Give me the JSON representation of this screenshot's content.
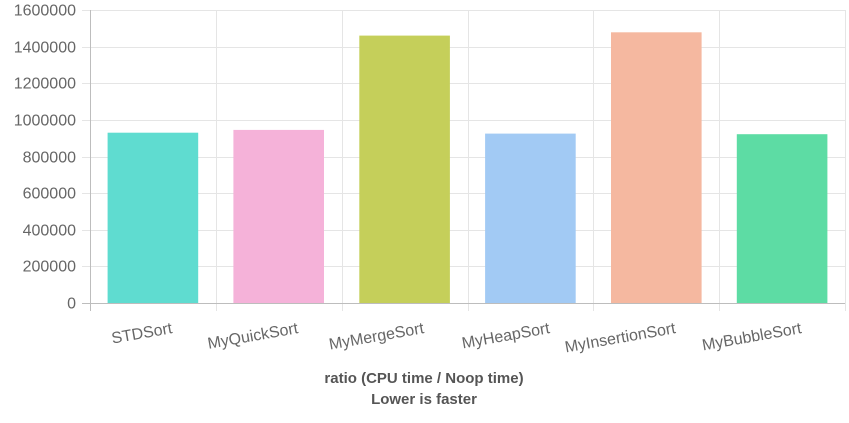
{
  "chart_data": {
    "type": "bar",
    "title": "",
    "xlabel": "ratio (CPU time / Noop time)",
    "xlabel_sub": "Lower is faster",
    "ylabel": "",
    "ylim": [
      0,
      1600000
    ],
    "yticks": [
      0,
      200000,
      400000,
      600000,
      800000,
      1000000,
      1200000,
      1400000,
      1600000
    ],
    "ytick_labels": [
      "0",
      "200000",
      "400000",
      "600000",
      "800000",
      "1000000",
      "1200000",
      "1400000",
      "1600000"
    ],
    "grid": true,
    "legend": "none",
    "categories": [
      "STDSort",
      "MyQuickSort",
      "MyMergeSort",
      "MyHeapSort",
      "MyInsertionSort",
      "MyBubbleSort"
    ],
    "values": [
      930000,
      945000,
      1460000,
      925000,
      1478000,
      922000
    ],
    "colors": [
      "#5fdcd0",
      "#f5b2d9",
      "#c5cf5a",
      "#a2caf4",
      "#f5b8a0",
      "#5ddca4"
    ]
  }
}
